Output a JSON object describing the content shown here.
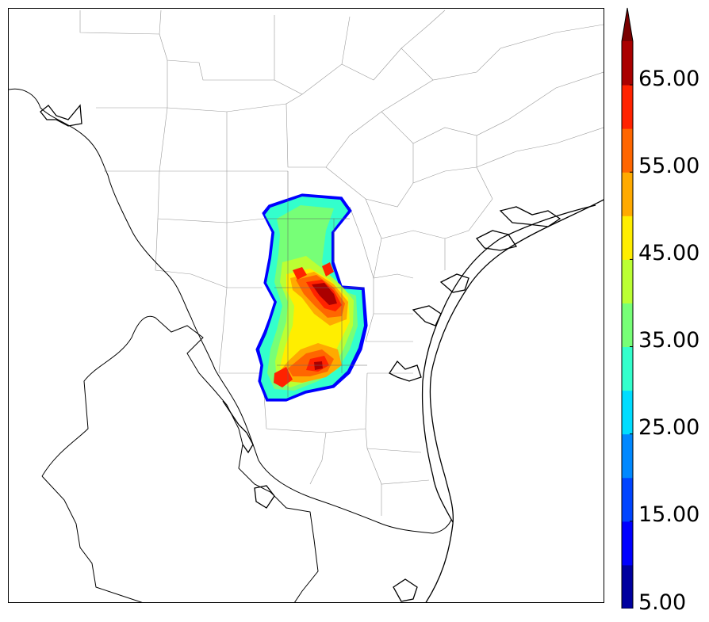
{
  "colorbar": {
    "tick_labels": [
      "5.00",
      "15.00",
      "25.00",
      "35.00",
      "45.00",
      "55.00",
      "65.00"
    ],
    "levels": [
      5,
      10,
      15,
      20,
      25,
      30,
      35,
      40,
      45,
      50,
      55,
      60,
      65,
      70
    ],
    "colors": [
      "#00009f",
      "#0000ff",
      "#0044ff",
      "#0088ff",
      "#00ddff",
      "#33ffcc",
      "#77ff77",
      "#bbff33",
      "#ffee00",
      "#ffaa00",
      "#ff6600",
      "#ff2200",
      "#aa0000",
      "#7a0000"
    ],
    "extend": "max"
  },
  "map": {
    "layers": [
      "state-borders",
      "county-borders",
      "coastline",
      "reflectivity-contours"
    ],
    "colors": {
      "county_border": "#9a9a9a",
      "state_border": "#000000",
      "coastline": "#000000",
      "background": "#ffffff"
    }
  }
}
